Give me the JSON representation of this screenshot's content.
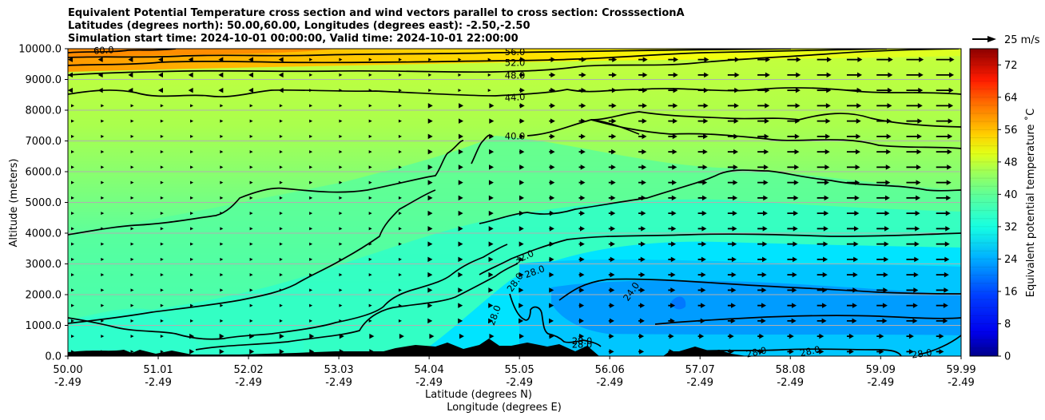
{
  "title_lines": [
    "Equivalent Potential Temperature cross section and wind vectors parallel to cross section: CrosssectionA",
    "Latitudes (degrees north): 50.00,60.00, Longitudes (degrees east): -2.50,-2.50",
    "Simulation start time: 2024-10-01 00:00:00, Valid time: 2024-10-01 22:00:00"
  ],
  "chart_data": {
    "type": "contourf",
    "title": "Equivalent Potential Temperature cross section and wind vectors parallel to cross section: CrosssectionA",
    "ylabel": "Altitude (meters)",
    "xlabel_lines": [
      "Latitude (degrees N)",
      "Longitude (degrees E)"
    ],
    "xlim": [
      50.0,
      59.99
    ],
    "ylim": [
      0,
      10000
    ],
    "x_ticks": [
      {
        "lat": "50.00",
        "lon": "-2.49",
        "value": 50.0
      },
      {
        "lat": "51.01",
        "lon": "-2.49",
        "value": 51.01
      },
      {
        "lat": "52.02",
        "lon": "-2.49",
        "value": 52.02
      },
      {
        "lat": "53.03",
        "lon": "-2.49",
        "value": 53.03
      },
      {
        "lat": "54.04",
        "lon": "-2.49",
        "value": 54.04
      },
      {
        "lat": "55.05",
        "lon": "-2.49",
        "value": 55.05
      },
      {
        "lat": "56.06",
        "lon": "-2.49",
        "value": 56.06
      },
      {
        "lat": "57.07",
        "lon": "-2.49",
        "value": 57.07
      },
      {
        "lat": "58.08",
        "lon": "-2.49",
        "value": 58.08
      },
      {
        "lat": "59.09",
        "lon": "-2.49",
        "value": 59.09
      },
      {
        "lat": "59.99",
        "lon": "-2.49",
        "value": 59.99
      }
    ],
    "y_ticks": [
      {
        "label": "0.0",
        "value": 0
      },
      {
        "label": "1000.0",
        "value": 1000
      },
      {
        "label": "2000.0",
        "value": 2000
      },
      {
        "label": "3000.0",
        "value": 3000
      },
      {
        "label": "4000.0",
        "value": 4000
      },
      {
        "label": "5000.0",
        "value": 5000
      },
      {
        "label": "6000.0",
        "value": 6000
      },
      {
        "label": "7000.0",
        "value": 7000
      },
      {
        "label": "8000.0",
        "value": 8000
      },
      {
        "label": "9000.0",
        "value": 9000
      },
      {
        "label": "10000.0",
        "value": 10000
      }
    ],
    "colorbar": {
      "label": "Equivalent potential temperature $^\\circ$C",
      "label_display": "Equivalent potential temperature ˚C",
      "min": 0,
      "max": 76,
      "ticks": [
        "0",
        "8",
        "16",
        "24",
        "32",
        "40",
        "48",
        "56",
        "64",
        "72"
      ],
      "tick_values": [
        0,
        8,
        16,
        24,
        32,
        40,
        48,
        56,
        64,
        72
      ]
    },
    "quiver_key": {
      "label": "25 m/s",
      "speed": 25
    },
    "contour_labels": [
      {
        "text": "60.0",
        "lat": 50.4,
        "alt": 9950,
        "angle": -3
      },
      {
        "text": "56.0",
        "lat": 55.0,
        "alt": 9900,
        "angle": 0
      },
      {
        "text": "52.0",
        "lat": 55.0,
        "alt": 9550,
        "angle": 0
      },
      {
        "text": "48.0",
        "lat": 55.0,
        "alt": 9130,
        "angle": 0
      },
      {
        "text": "44.0",
        "lat": 55.0,
        "alt": 8420,
        "angle": -4
      },
      {
        "text": "40.0",
        "lat": 55.0,
        "alt": 7160,
        "angle": 0
      },
      {
        "text": "32.0",
        "lat": 55.1,
        "alt": 3230,
        "angle": -25
      },
      {
        "text": "28.0",
        "lat": 55.22,
        "alt": 2750,
        "angle": -20
      },
      {
        "text": "28.0",
        "lat": 55.0,
        "alt": 2400,
        "angle": -55
      },
      {
        "text": "28.0",
        "lat": 54.77,
        "alt": 1330,
        "angle": -70
      },
      {
        "text": "24.0",
        "lat": 56.3,
        "alt": 2100,
        "angle": -55
      },
      {
        "text": "28.0",
        "lat": 55.75,
        "alt": 500,
        "angle": 0
      },
      {
        "text": "28.0",
        "lat": 55.75,
        "alt": 380,
        "angle": 0
      },
      {
        "text": "28.0",
        "lat": 57.7,
        "alt": 130,
        "angle": -12
      },
      {
        "text": "28.0",
        "lat": 58.3,
        "alt": 160,
        "angle": -12
      },
      {
        "text": "28.0",
        "lat": 59.55,
        "alt": 80,
        "angle": -8
      }
    ]
  }
}
